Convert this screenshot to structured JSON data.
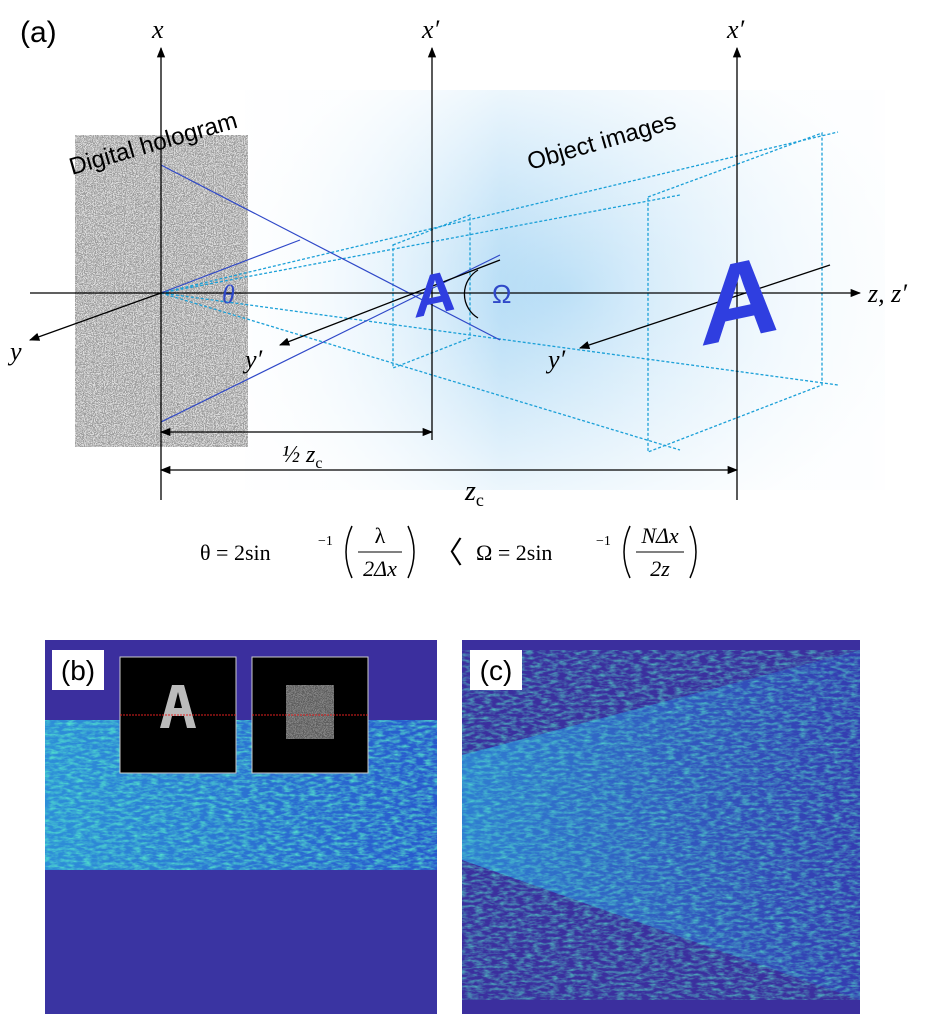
{
  "panel_a": {
    "label": "(a)",
    "axis_x": "x",
    "axis_x_prime_near": "x′",
    "axis_x_prime_far": "x′",
    "axis_y": "y",
    "axis_y_prime_near": "y′",
    "axis_y_prime_far": "y′",
    "axis_z": "z, z′",
    "hologram_label": "Digital hologram",
    "object_label": "Object images",
    "theta": "θ",
    "omega": "Ω",
    "letter_near": "A",
    "letter_far": "A",
    "half_distance": {
      "main": "½ z",
      "sub": "c"
    },
    "distance": {
      "main": "z",
      "sub": "c"
    },
    "equation": {
      "left": "θ = 2sin",
      "left_sup": "−1",
      "left_num": "λ",
      "left_den": "2Δx",
      "relation": "〈",
      "right": "Ω = 2sin",
      "right_sup": "−1",
      "right_num": "NΔx",
      "right_den": "2z"
    }
  },
  "panel_b": {
    "label": "(b)"
  },
  "panel_c": {
    "label": "(c)"
  }
}
